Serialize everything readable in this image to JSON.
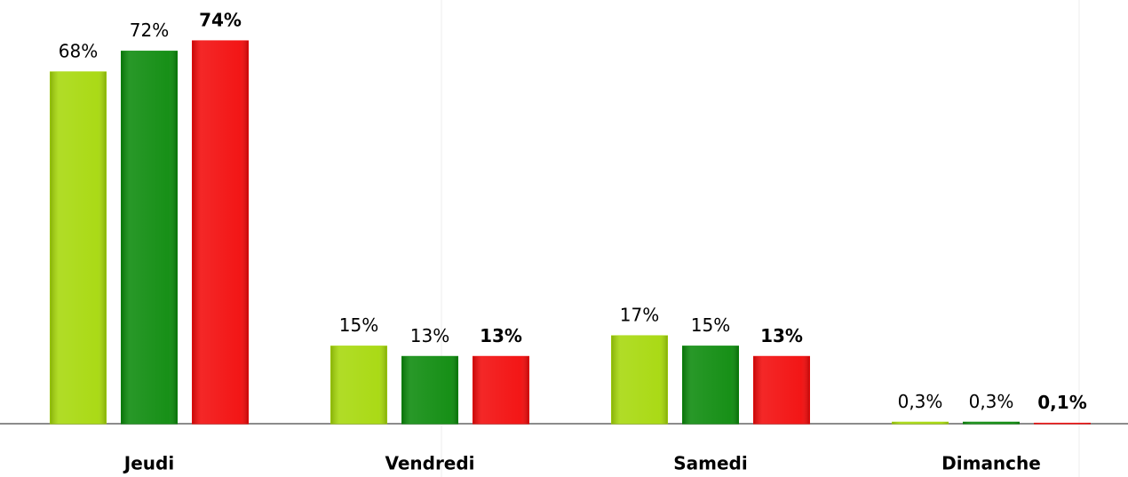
{
  "chart_data": {
    "type": "bar",
    "categories": [
      "Jeudi",
      "Vendredi",
      "Samedi",
      "Dimanche"
    ],
    "series": [
      {
        "color": "#a6d80a",
        "values": [
          68,
          15,
          17,
          0.3
        ],
        "value_labels": [
          "68%",
          "15%",
          "17%",
          "0,3%"
        ]
      },
      {
        "color": "#0b8a0b",
        "values": [
          72,
          13,
          15,
          0.3
        ],
        "value_labels": [
          "72%",
          "13%",
          "15%",
          "0,3%"
        ]
      },
      {
        "color": "#f20a0a",
        "values": [
          74,
          13,
          13,
          0.1
        ],
        "value_labels": [
          "74%",
          "13%",
          "13%",
          "0,1%"
        ],
        "bold": true
      }
    ],
    "ylim": [
      0,
      80
    ]
  }
}
